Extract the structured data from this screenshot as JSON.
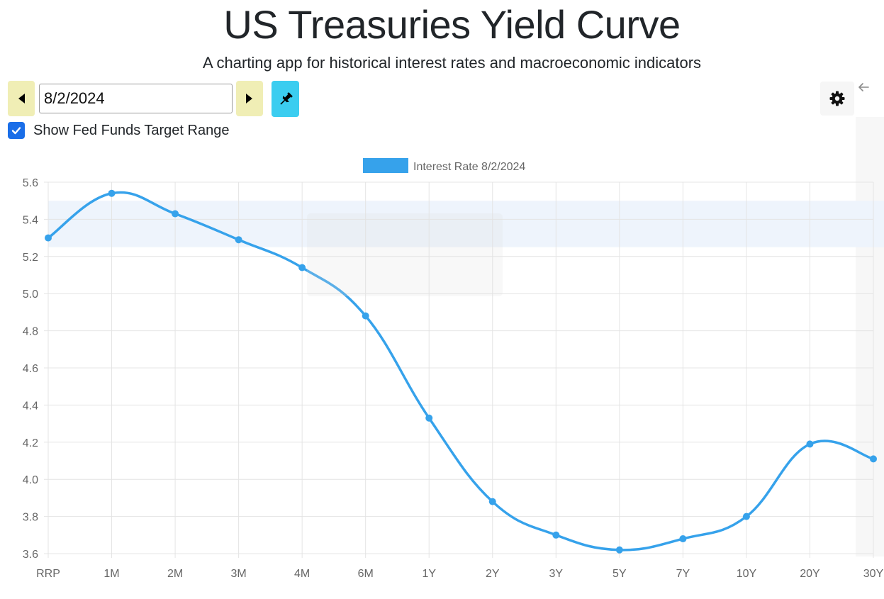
{
  "header": {
    "title": "US Treasuries Yield Curve",
    "subtitle": "A charting app for historical interest rates and macroeconomic indicators"
  },
  "controls": {
    "date_value": "8/2/2024",
    "show_fed_funds_label": "Show Fed Funds Target Range",
    "show_fed_funds_checked": true,
    "icons": {
      "prev": "caret-left-icon",
      "next": "caret-right-icon",
      "pin": "pin-icon",
      "settings": "gear-icon",
      "collapse": "arrow-left-icon",
      "checkbox": "checkmark-icon"
    }
  },
  "chart_data": {
    "type": "line",
    "categories": [
      "RRP",
      "1M",
      "2M",
      "3M",
      "4M",
      "6M",
      "1Y",
      "2Y",
      "3Y",
      "5Y",
      "7Y",
      "10Y",
      "20Y",
      "30Y"
    ],
    "series": [
      {
        "name": "Interest Rate 8/2/2024",
        "color": "#36a2eb",
        "values": [
          5.3,
          5.54,
          5.43,
          5.29,
          5.14,
          4.88,
          4.33,
          3.88,
          3.7,
          3.62,
          3.68,
          3.8,
          4.19,
          4.11
        ]
      }
    ],
    "fed_funds_range": [
      5.25,
      5.5
    ],
    "fed_funds_color": "#eef4fc",
    "y_ticks": [
      "5.6",
      "5.4",
      "5.2",
      "5.0",
      "4.8",
      "4.6",
      "4.4",
      "4.2",
      "4.0",
      "3.8",
      "3.6"
    ],
    "ylim": [
      3.6,
      5.6
    ],
    "grid": true,
    "legend_position": "top"
  }
}
